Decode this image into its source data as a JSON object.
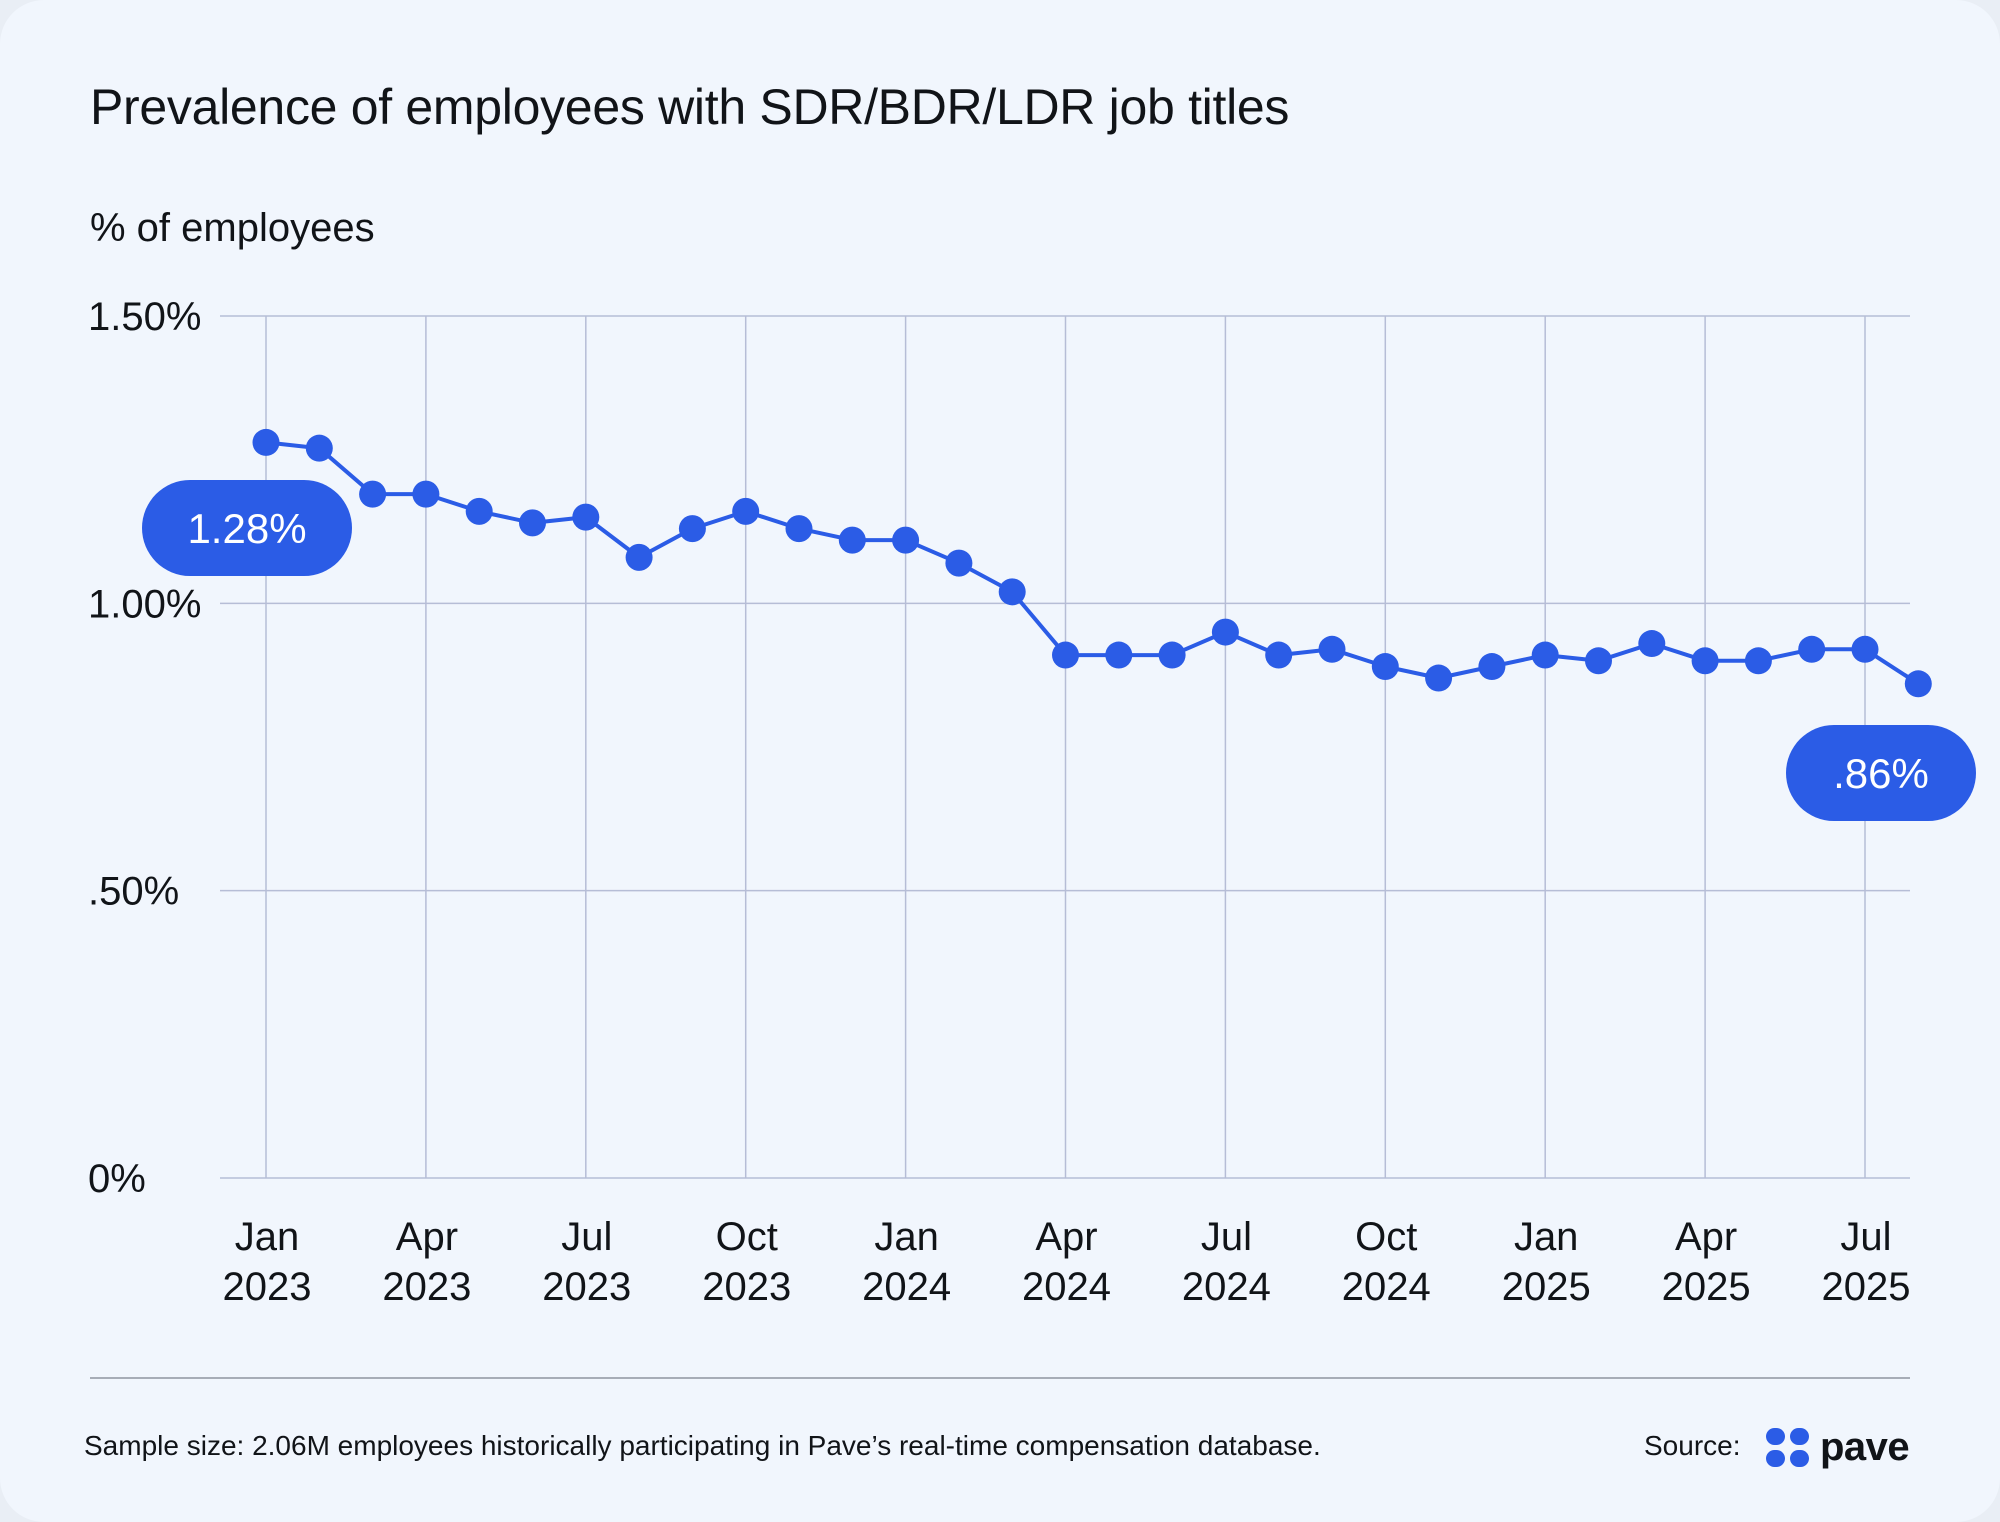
{
  "title": "Prevalence of employees with SDR/BDR/LDR job titles",
  "ylabel": "% of employees",
  "footnote": "Sample size: 2.06M employees historically participating in Pave’s real-time compensation database.",
  "source_label": "Source:",
  "brand": "pave",
  "colors": {
    "accent": "#2b5ce6",
    "grid": "#b6bdd6",
    "text": "#111418"
  },
  "chart_data": {
    "type": "line",
    "title": "Prevalence of employees with SDR/BDR/LDR job titles",
    "ylabel": "% of employees",
    "xlabel": "",
    "ylim": [
      0,
      1.5
    ],
    "grid": true,
    "yticks": [
      {
        "value": 0,
        "label": "0%"
      },
      {
        "value": 0.5,
        "label": ".50%"
      },
      {
        "value": 1.0,
        "label": "1.00%"
      },
      {
        "value": 1.5,
        "label": "1.50%"
      }
    ],
    "xticks": [
      {
        "index": 0,
        "label": [
          "Jan",
          "2023"
        ]
      },
      {
        "index": 3,
        "label": [
          "Apr",
          "2023"
        ]
      },
      {
        "index": 6,
        "label": [
          "Jul",
          "2023"
        ]
      },
      {
        "index": 9,
        "label": [
          "Oct",
          "2023"
        ]
      },
      {
        "index": 12,
        "label": [
          "Jan",
          "2024"
        ]
      },
      {
        "index": 15,
        "label": [
          "Apr",
          "2024"
        ]
      },
      {
        "index": 18,
        "label": [
          "Jul",
          "2024"
        ]
      },
      {
        "index": 21,
        "label": [
          "Oct",
          "2024"
        ]
      },
      {
        "index": 24,
        "label": [
          "Jan",
          "2025"
        ]
      },
      {
        "index": 27,
        "label": [
          "Apr",
          "2025"
        ]
      },
      {
        "index": 30,
        "label": [
          "Jul",
          "2025"
        ]
      }
    ],
    "x": [
      "Jan 2023",
      "Feb 2023",
      "Mar 2023",
      "Apr 2023",
      "May 2023",
      "Jun 2023",
      "Jul 2023",
      "Aug 2023",
      "Sep 2023",
      "Oct 2023",
      "Nov 2023",
      "Dec 2023",
      "Jan 2024",
      "Feb 2024",
      "Mar 2024",
      "Apr 2024",
      "May 2024",
      "Jun 2024",
      "Jul 2024",
      "Aug 2024",
      "Sep 2024",
      "Oct 2024",
      "Nov 2024",
      "Dec 2024",
      "Jan 2025",
      "Feb 2025",
      "Mar 2025",
      "Apr 2025",
      "May 2025",
      "Jun 2025",
      "Jul 2025",
      "Aug 2025"
    ],
    "values": [
      1.28,
      1.27,
      1.19,
      1.19,
      1.16,
      1.14,
      1.15,
      1.08,
      1.13,
      1.16,
      1.13,
      1.11,
      1.11,
      1.07,
      1.02,
      0.91,
      0.91,
      0.91,
      0.95,
      0.91,
      0.92,
      0.89,
      0.87,
      0.89,
      0.91,
      0.9,
      0.93,
      0.9,
      0.9,
      0.92,
      0.92,
      0.86
    ],
    "annotations": [
      {
        "index": 0,
        "text": "1.28%"
      },
      {
        "index": 31,
        "text": ".86%"
      }
    ]
  }
}
